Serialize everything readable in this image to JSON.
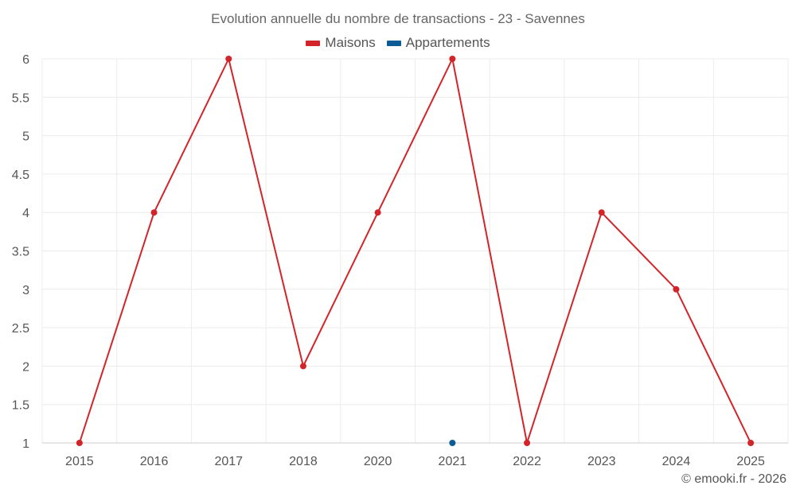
{
  "chart_data": {
    "type": "line",
    "title": "Evolution annuelle du nombre de transactions - 23 - Savennes",
    "categories": [
      "2015",
      "2016",
      "2017",
      "2018",
      "2020",
      "2021",
      "2022",
      "2023",
      "2024",
      "2025"
    ],
    "series": [
      {
        "name": "Maisons",
        "color": "#d3242a",
        "values": [
          1,
          4,
          6,
          2,
          4,
          6,
          1,
          4,
          3,
          1
        ]
      },
      {
        "name": "Appartements",
        "color": "#0b5c96",
        "values": [
          null,
          null,
          null,
          null,
          null,
          1,
          null,
          null,
          null,
          null
        ]
      }
    ],
    "ylim": [
      1,
      6
    ],
    "yticks": [
      "1",
      "1.5",
      "2",
      "2.5",
      "3",
      "3.5",
      "4",
      "4.5",
      "5",
      "5.5",
      "6"
    ],
    "grid": true,
    "legend_position": "top-center"
  },
  "credit": "© emooki.fr - 2026"
}
